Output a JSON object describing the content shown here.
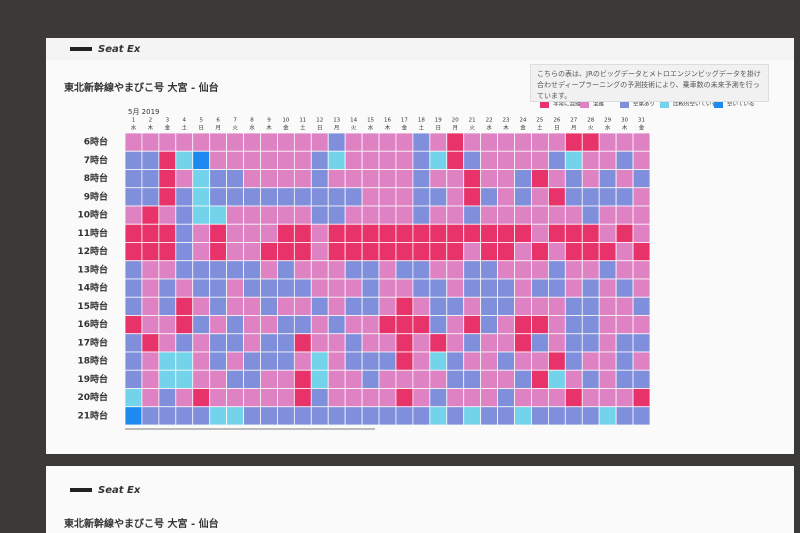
{
  "chart_data": {
    "type": "heatmap",
    "logo": "Seat Ex",
    "title": "東北新幹線やまびこ号 大宮 - 仙台",
    "note": "こちらの表は、JRのビッグデータとメトロエンジンビッグデータを掛け合わせディープラーニングの予測技術により、乗車数の未来予測を行っています。",
    "month_label": "5月 2019",
    "levels": [
      {
        "name": "非常に混雑",
        "color": "#e8336a"
      },
      {
        "name": "混雑",
        "color": "#df82c4"
      },
      {
        "name": "空席あり",
        "color": "#7f8fdc"
      },
      {
        "name": "比較的空いている",
        "color": "#72d3ea"
      },
      {
        "name": "空いている",
        "color": "#1e8af0"
      }
    ],
    "categories": [
      "1",
      "2",
      "3",
      "4",
      "5",
      "6",
      "7",
      "8",
      "9",
      "10",
      "11",
      "12",
      "13",
      "14",
      "15",
      "16",
      "17",
      "18",
      "19",
      "20",
      "21",
      "22",
      "23",
      "24",
      "25",
      "26",
      "27",
      "28",
      "29",
      "30",
      "31"
    ],
    "weekdays": [
      "水",
      "木",
      "金",
      "土",
      "日",
      "月",
      "火",
      "水",
      "木",
      "金",
      "土",
      "日",
      "月",
      "火",
      "水",
      "木",
      "金",
      "土",
      "日",
      "月",
      "火",
      "水",
      "木",
      "金",
      "土",
      "日",
      "月",
      "火",
      "水",
      "木",
      "金"
    ],
    "rows": [
      "6時台",
      "7時台",
      "8時台",
      "9時台",
      "10時台",
      "11時台",
      "12時台",
      "13時台",
      "14時台",
      "15時台",
      "16時台",
      "17時台",
      "18時台",
      "19時台",
      "20時台",
      "21時台"
    ],
    "values": [
      [
        1,
        1,
        1,
        1,
        1,
        1,
        1,
        1,
        1,
        1,
        1,
        1,
        2,
        1,
        1,
        1,
        1,
        2,
        1,
        0,
        1,
        1,
        1,
        1,
        1,
        1,
        0,
        0,
        1,
        1,
        1
      ],
      [
        2,
        2,
        0,
        3,
        4,
        1,
        1,
        1,
        1,
        1,
        1,
        2,
        3,
        1,
        1,
        1,
        1,
        2,
        3,
        0,
        2,
        1,
        1,
        1,
        1,
        2,
        3,
        1,
        1,
        2,
        1
      ],
      [
        2,
        2,
        0,
        1,
        3,
        2,
        2,
        1,
        1,
        1,
        1,
        2,
        1,
        1,
        1,
        1,
        1,
        2,
        1,
        1,
        0,
        1,
        1,
        2,
        0,
        1,
        2,
        1,
        2,
        1,
        2
      ],
      [
        2,
        2,
        0,
        2,
        3,
        2,
        2,
        2,
        2,
        2,
        2,
        2,
        2,
        2,
        1,
        1,
        1,
        2,
        2,
        1,
        0,
        2,
        1,
        2,
        1,
        0,
        2,
        2,
        2,
        2,
        1
      ],
      [
        1,
        0,
        1,
        2,
        3,
        3,
        1,
        1,
        1,
        1,
        1,
        2,
        2,
        1,
        1,
        1,
        1,
        2,
        1,
        1,
        2,
        1,
        1,
        1,
        1,
        1,
        1,
        2,
        1,
        1,
        1
      ],
      [
        0,
        0,
        0,
        2,
        1,
        0,
        1,
        1,
        1,
        0,
        0,
        1,
        0,
        0,
        0,
        0,
        0,
        0,
        0,
        0,
        0,
        0,
        0,
        0,
        1,
        0,
        0,
        0,
        1,
        0,
        1
      ],
      [
        0,
        0,
        0,
        2,
        1,
        0,
        1,
        1,
        0,
        0,
        0,
        1,
        0,
        0,
        0,
        0,
        0,
        0,
        0,
        0,
        1,
        0,
        0,
        1,
        0,
        1,
        0,
        0,
        0,
        1,
        0
      ],
      [
        2,
        1,
        1,
        2,
        2,
        2,
        2,
        2,
        1,
        2,
        1,
        1,
        1,
        2,
        2,
        1,
        2,
        2,
        1,
        1,
        2,
        2,
        1,
        1,
        1,
        2,
        1,
        1,
        2,
        1,
        1
      ],
      [
        2,
        1,
        2,
        1,
        2,
        2,
        1,
        2,
        2,
        2,
        2,
        1,
        1,
        1,
        2,
        1,
        1,
        2,
        2,
        1,
        2,
        2,
        2,
        1,
        2,
        2,
        1,
        2,
        1,
        2,
        1
      ],
      [
        2,
        1,
        2,
        0,
        1,
        2,
        1,
        1,
        2,
        1,
        1,
        2,
        1,
        2,
        2,
        1,
        0,
        1,
        2,
        2,
        1,
        2,
        2,
        1,
        1,
        1,
        2,
        2,
        1,
        1,
        2
      ],
      [
        0,
        1,
        1,
        0,
        2,
        1,
        2,
        1,
        1,
        2,
        2,
        1,
        2,
        1,
        1,
        0,
        0,
        0,
        2,
        1,
        0,
        2,
        1,
        0,
        0,
        1,
        2,
        2,
        1,
        1,
        1
      ],
      [
        2,
        0,
        1,
        2,
        1,
        2,
        2,
        1,
        2,
        2,
        0,
        1,
        1,
        2,
        1,
        1,
        0,
        1,
        0,
        1,
        2,
        1,
        1,
        0,
        2,
        1,
        2,
        2,
        1,
        2,
        2
      ],
      [
        2,
        1,
        3,
        3,
        1,
        2,
        1,
        2,
        2,
        2,
        1,
        3,
        1,
        2,
        2,
        2,
        0,
        1,
        3,
        2,
        1,
        1,
        2,
        1,
        1,
        0,
        2,
        1,
        1,
        2,
        1
      ],
      [
        2,
        1,
        3,
        3,
        1,
        1,
        2,
        2,
        1,
        1,
        0,
        3,
        1,
        1,
        2,
        1,
        1,
        1,
        1,
        2,
        2,
        1,
        1,
        2,
        0,
        3,
        1,
        2,
        1,
        2,
        2
      ],
      [
        3,
        1,
        2,
        1,
        0,
        1,
        1,
        1,
        1,
        1,
        0,
        2,
        1,
        1,
        1,
        1,
        0,
        1,
        2,
        1,
        1,
        1,
        2,
        1,
        1,
        1,
        0,
        1,
        1,
        1,
        0
      ],
      [
        4,
        2,
        2,
        2,
        2,
        3,
        3,
        2,
        2,
        2,
        2,
        2,
        2,
        2,
        2,
        2,
        2,
        2,
        3,
        2,
        3,
        2,
        2,
        3,
        2,
        2,
        2,
        2,
        3,
        2,
        2
      ]
    ]
  }
}
